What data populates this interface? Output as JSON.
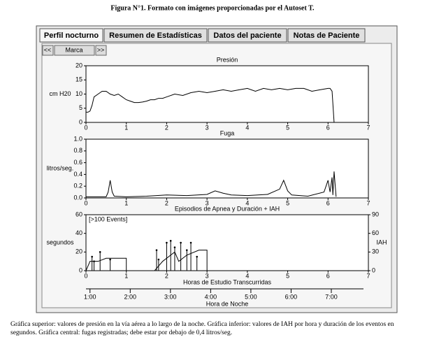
{
  "figure_title": "Figura N°1. Formato con imágenes proporcionadas por el Autoset T.",
  "tabs": [
    "Perfil nocturno",
    "Resumen de Estadísticas",
    "Datos del paciente",
    "Notas de Paciente"
  ],
  "toolbar": {
    "prev": "<<",
    "label": "Marca",
    "next": ">>"
  },
  "chart_data": [
    {
      "type": "line",
      "title": "Presión",
      "ylabel": "cm H20",
      "xlim": [
        0,
        7
      ],
      "xticks": [
        0,
        1,
        2,
        3,
        4,
        5,
        6,
        7
      ],
      "ylim": [
        0,
        20
      ],
      "yticks": [
        0,
        5,
        10,
        15,
        20
      ],
      "series": [
        {
          "color": "#000000",
          "x": [
            0,
            0.05,
            0.1,
            0.15,
            0.2,
            0.3,
            0.4,
            0.5,
            0.6,
            0.7,
            0.8,
            0.9,
            1.0,
            1.1,
            1.2,
            1.3,
            1.4,
            1.5,
            1.6,
            1.7,
            1.8,
            1.9,
            2.0,
            2.2,
            2.4,
            2.6,
            2.8,
            3.0,
            3.2,
            3.4,
            3.6,
            3.8,
            4.0,
            4.2,
            4.4,
            4.6,
            4.8,
            5.0,
            5.2,
            5.4,
            5.6,
            5.8,
            6.0,
            6.05,
            6.1,
            6.15
          ],
          "values": [
            3.6,
            3.6,
            4,
            6,
            9,
            10,
            11,
            11,
            10,
            9.5,
            10,
            9,
            8,
            7.5,
            7,
            7,
            7.2,
            7.5,
            8,
            8,
            8.5,
            8.5,
            9,
            10,
            9.5,
            10.5,
            11,
            10.5,
            11,
            11.5,
            11,
            11.5,
            12,
            11,
            12,
            11.5,
            12,
            11.5,
            12,
            12,
            11,
            11.5,
            12,
            12,
            11,
            0
          ]
        }
      ]
    },
    {
      "type": "line",
      "title": "Fuga",
      "ylabel": "litros/seg.",
      "xlim": [
        0,
        7
      ],
      "xticks": [
        0,
        1,
        2,
        3,
        4,
        5,
        6,
        7
      ],
      "ylim": [
        0,
        1.0
      ],
      "yticks": [
        {
          "value": 0,
          "label": "0.0"
        },
        {
          "value": 0.2,
          "label": "0.2"
        },
        {
          "value": 0.4,
          "label": "0.4"
        },
        {
          "value": 0.6,
          "label": "0.6"
        },
        {
          "value": 0.8,
          "label": "0.8"
        },
        {
          "value": 1.0,
          "label": "1.0"
        }
      ],
      "series": [
        {
          "color": "#000000",
          "x": [
            0,
            0.5,
            0.55,
            0.6,
            0.65,
            0.7,
            1.0,
            1.5,
            2.0,
            2.5,
            3.0,
            3.2,
            3.4,
            3.6,
            4.0,
            4.5,
            4.8,
            4.9,
            5.0,
            5.1,
            5.5,
            5.9,
            6.0,
            6.05,
            6.1,
            6.12,
            6.15,
            6.2
          ],
          "values": [
            0.02,
            0.02,
            0.1,
            0.3,
            0.1,
            0.03,
            0.02,
            0.03,
            0.05,
            0.04,
            0.06,
            0.12,
            0.08,
            0.05,
            0.04,
            0.06,
            0.15,
            0.3,
            0.12,
            0.05,
            0.03,
            0.1,
            0.3,
            0.1,
            0.35,
            0.05,
            0.45,
            0.02
          ]
        }
      ]
    },
    {
      "type": "line",
      "title": "Episodios de Apnea y Duración  +  IAH",
      "ylabel": "segundos",
      "y2label": "IAH",
      "annotation": "[>100 Events]",
      "xlabel": "Horas de Estudio Transcurridas",
      "xlim": [
        0,
        7
      ],
      "xticks": [
        0,
        1,
        2,
        3,
        4,
        5,
        6,
        7
      ],
      "ylim": [
        0,
        60
      ],
      "yticks": [
        0,
        20,
        40,
        60
      ],
      "y2lim": [
        0,
        90
      ],
      "y2ticks": [
        0,
        30,
        60,
        90
      ],
      "series": [
        {
          "type": "stem",
          "color": "#000000",
          "x": [
            0.15,
            0.2,
            0.35,
            0.6,
            1.75,
            1.8,
            2.0,
            2.1,
            2.2,
            2.35,
            2.5,
            2.6,
            2.75
          ],
          "values": [
            15,
            10,
            20,
            12,
            22,
            12,
            30,
            32,
            25,
            30,
            22,
            30,
            15
          ]
        },
        {
          "type": "line",
          "axis": "y2",
          "color": "#000000",
          "x": [
            0,
            0.1,
            0.2,
            0.3,
            0.5,
            1.0,
            1.0,
            1.7,
            1.9,
            2.1,
            2.2,
            2.3,
            2.5,
            2.8,
            3.0,
            3.0
          ],
          "values": [
            0,
            15,
            15,
            15,
            20,
            20,
            0,
            0,
            15,
            25,
            30,
            15,
            25,
            33,
            33,
            0
          ]
        }
      ]
    }
  ],
  "time_axis": {
    "label": "Hora de Noche",
    "xlim": [
      0.9,
      7.8
    ],
    "xticks": [
      {
        "value": 1,
        "label": "1:00"
      },
      {
        "value": 2,
        "label": "2:00"
      },
      {
        "value": 3,
        "label": "3:00"
      },
      {
        "value": 4,
        "label": "4:00"
      },
      {
        "value": 5,
        "label": "5:00"
      },
      {
        "value": 6,
        "label": "6:00"
      },
      {
        "value": 7,
        "label": "7:00"
      }
    ]
  },
  "caption": "Gráfica superior: valores de presión en la vía aérea a lo largo de la noche. Gráfica inferior: valores de IAH por hora y duración de los eventos en segundos. Gráfica central: fugas registradas; debe estar por debajo de 0,4 litros/seg."
}
